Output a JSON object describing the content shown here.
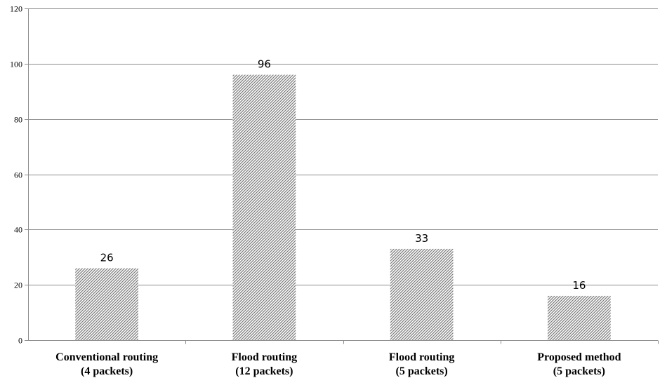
{
  "chart_data": {
    "type": "bar",
    "title": "",
    "xlabel": "",
    "ylabel": "",
    "categories": [
      [
        "Conventional routing",
        "(4 packets)"
      ],
      [
        "Flood routing",
        "(12 packets)"
      ],
      [
        "Flood routing",
        "(5 packets)"
      ],
      [
        "Proposed method",
        "(5 packets)"
      ]
    ],
    "values": [
      26,
      96,
      33,
      16
    ],
    "data_labels": [
      "26",
      "96",
      "33",
      "16"
    ],
    "ylim": [
      0,
      120
    ],
    "yticks": [
      0,
      20,
      40,
      60,
      80,
      100,
      120
    ],
    "ytick_labels": [
      "0",
      "20",
      "40",
      "60",
      "80",
      "100",
      "120"
    ],
    "grid": "horizontal",
    "legend": "none",
    "bar_fill": "hatched-gray",
    "colors": {
      "grid": "#8c8c8c",
      "hatch": "#8a8a8a",
      "bar_bg": "#ffffff",
      "axis": "#8c8c8c"
    }
  }
}
